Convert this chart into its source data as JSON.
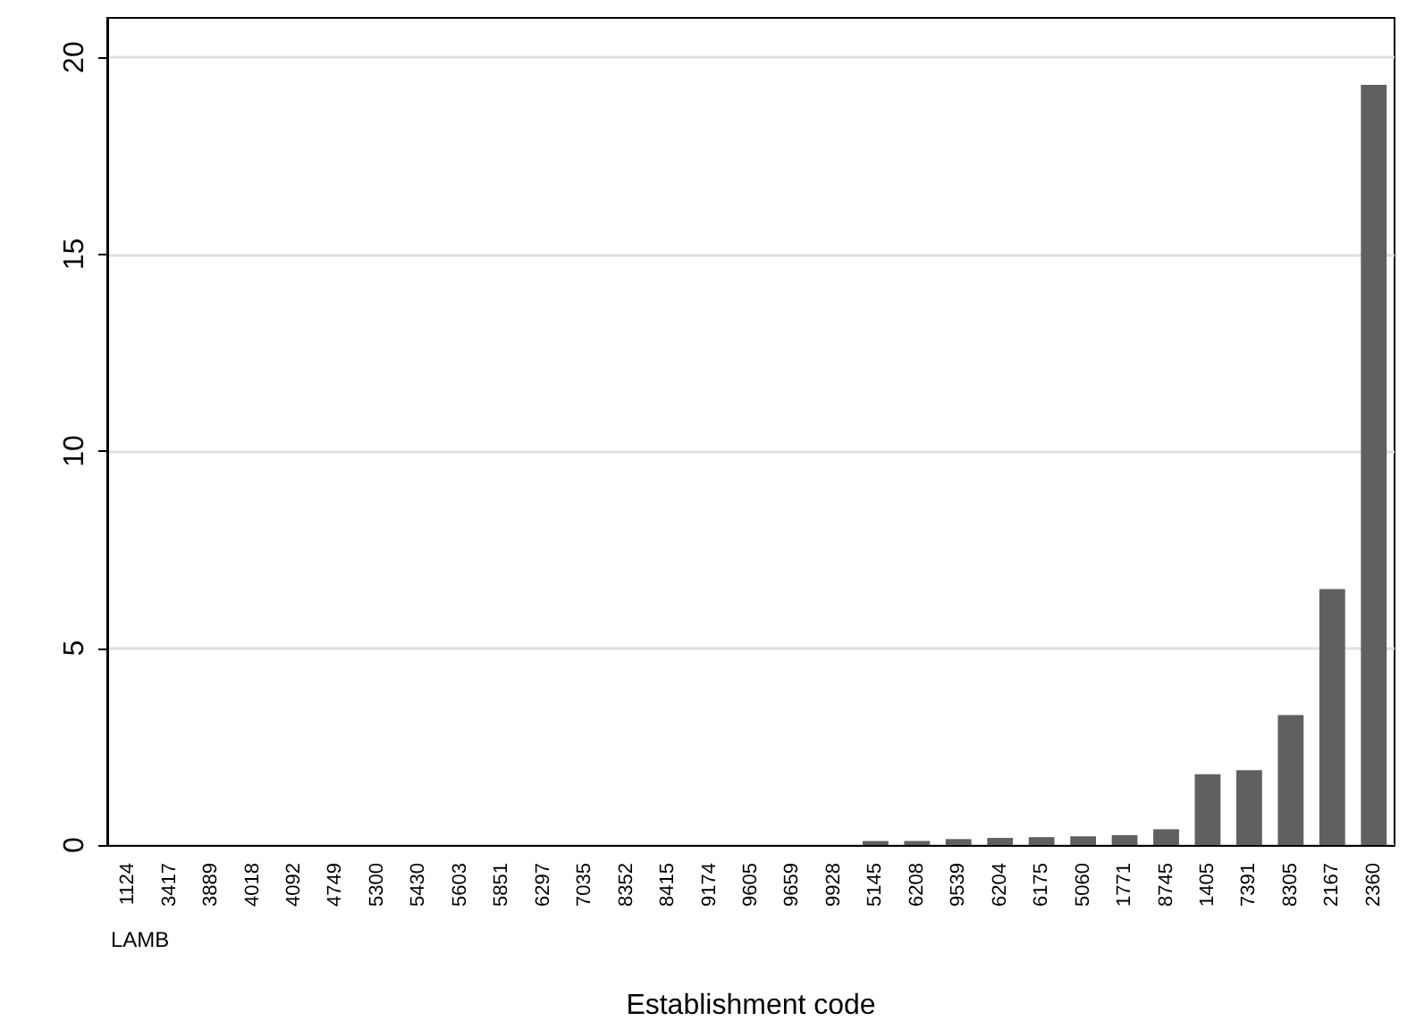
{
  "chart_data": {
    "type": "bar",
    "xlabel": "Establishment code",
    "annotations": [
      "LAMB"
    ],
    "categories": [
      "1124",
      "3417",
      "3889",
      "4018",
      "4092",
      "4749",
      "5300",
      "5430",
      "5603",
      "5851",
      "6297",
      "7035",
      "8352",
      "8415",
      "9174",
      "9605",
      "9659",
      "9928",
      "5145",
      "6208",
      "9539",
      "6204",
      "6175",
      "5060",
      "1771",
      "8745",
      "1405",
      "7391",
      "8305",
      "2167",
      "2360"
    ],
    "values": [
      0,
      0,
      0,
      0,
      0,
      0,
      0,
      0,
      0,
      0,
      0,
      0,
      0,
      0,
      0,
      0,
      0,
      0,
      0.1,
      0.1,
      0.15,
      0.18,
      0.2,
      0.22,
      0.25,
      0.4,
      1.8,
      1.9,
      3.3,
      6.5,
      19.3
    ],
    "color": "#606060",
    "ylim": [
      0,
      21
    ],
    "yticks": [
      0,
      5,
      10,
      15,
      20
    ],
    "grid": "y"
  }
}
